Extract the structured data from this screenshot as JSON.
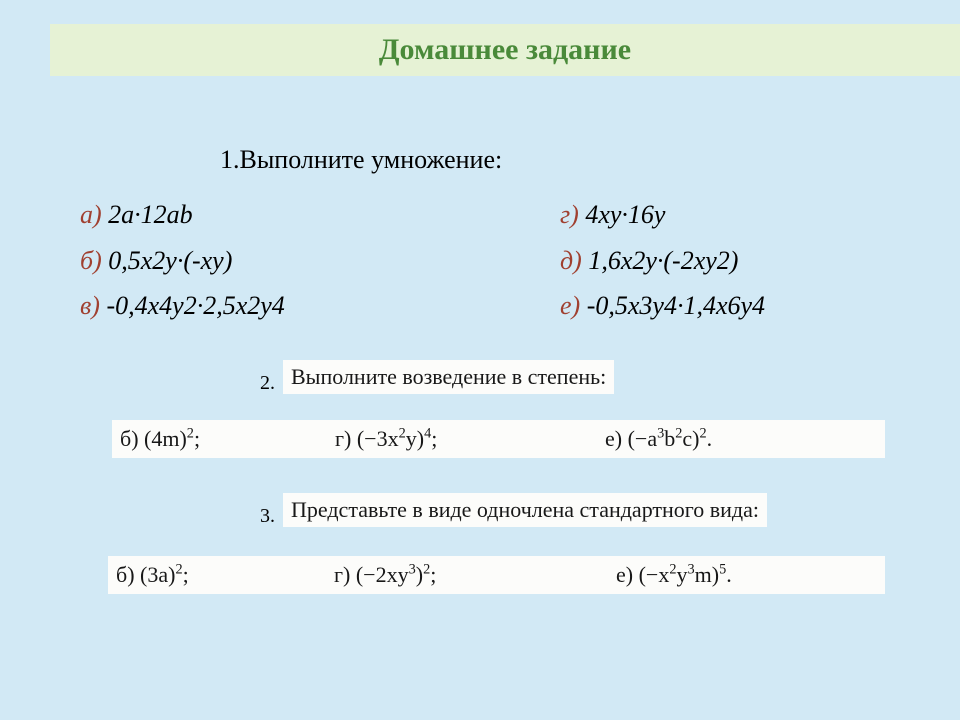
{
  "header": {
    "title": "Домашнее задание"
  },
  "section1": {
    "title": "1.Выполните умножение:",
    "col1": [
      {
        "label": "а) ",
        "expr": "2а·12аb"
      },
      {
        "label": "б) ",
        "expr": "0,5х2у·(-ху)"
      },
      {
        "label": "в) ",
        "expr": "-0,4х4у2·2,5х2у4"
      }
    ],
    "col2": [
      {
        "label": "г) ",
        "expr": "4ху·16у"
      },
      {
        "label": "д) ",
        "expr": "1,6х2у·(-2ху2)"
      },
      {
        "label": "е) ",
        "expr": "-0,5х3у4·1,4х6у4"
      }
    ]
  },
  "section2": {
    "num": "2.",
    "title": "Выполните возведение в степень:",
    "items": {
      "b": {
        "label": "б)  ",
        "base": "(4m)",
        "exp": "2",
        "tail": ";"
      },
      "g": {
        "label": "г)  ",
        "base": "(−3x",
        "mid_exp": "2",
        "mid": "y)",
        "exp": "4",
        "tail": ";"
      },
      "e": {
        "label": "е)  ",
        "base": "(−a",
        "e1": "3",
        "m1": "b",
        "e2": "2",
        "m2": "c)",
        "exp": "2",
        "tail": "."
      }
    }
  },
  "section3": {
    "num": "3.",
    "title": "Представьте в виде одночлена стандартного вида:",
    "items": {
      "b": {
        "label": "б)  ",
        "base": "(3a)",
        "exp": "2",
        "tail": ";"
      },
      "g": {
        "label": "г)  ",
        "base": "(−2xy",
        "mid_exp": "3",
        "mid": ")",
        "exp": "2",
        "tail": ";"
      },
      "e": {
        "label": "е)  ",
        "base": "(−x",
        "e1": "2",
        "m1": "y",
        "e2": "3",
        "m2": "m)",
        "exp": "5",
        "tail": "."
      }
    }
  },
  "colors": {
    "background": "#d2e9f5",
    "header_bg": "#e6f2d5",
    "header_text": "#4a8a3a",
    "label_color": "#a04030",
    "snippet_bg": "#fcfcfa"
  }
}
